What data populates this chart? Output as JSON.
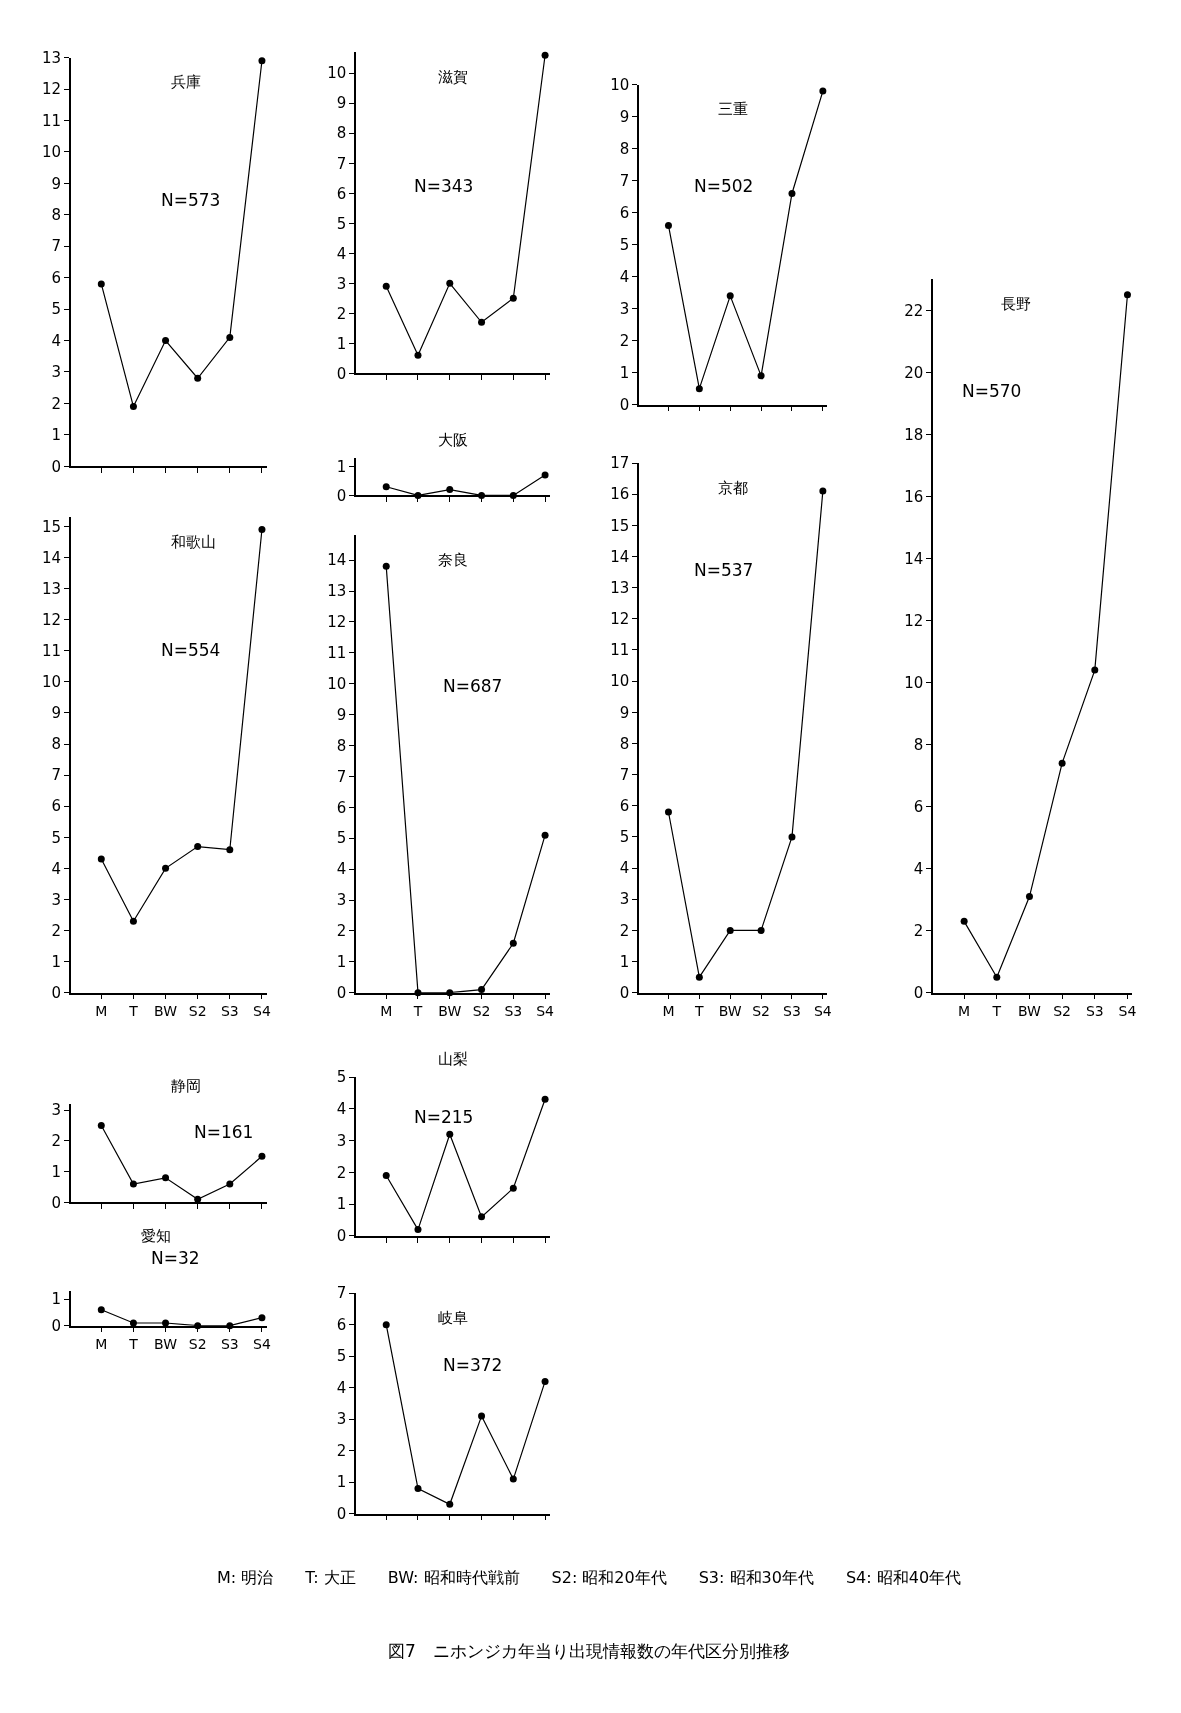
{
  "chart_data": [
    {
      "type": "line",
      "title": "兵庫",
      "categories": [
        null,
        null,
        null,
        null,
        null,
        null
      ],
      "series": [
        {
          "color": "#000000",
          "values": [
            5.8,
            1.9,
            4.0,
            2.8,
            4.1,
            12.9
          ]
        }
      ],
      "ylim": [
        0,
        13
      ],
      "yticks": [
        0,
        1,
        2,
        3,
        4,
        5,
        6,
        7,
        8,
        9,
        10,
        11,
        12,
        13
      ],
      "annotations": [
        "N=573"
      ],
      "marker": "circle",
      "line_style": "solid"
    },
    {
      "type": "line",
      "title": "滋賀",
      "categories": [
        null,
        null,
        null,
        null,
        null,
        null
      ],
      "series": [
        {
          "color": "#000000",
          "values": [
            2.9,
            0.6,
            3.0,
            1.7,
            2.5,
            10.6
          ]
        }
      ],
      "ylim": [
        0,
        10.7
      ],
      "yticks": [
        0,
        1,
        2,
        3,
        4,
        5,
        6,
        7,
        8,
        9,
        10
      ],
      "annotations": [
        "N=343"
      ],
      "marker": "circle",
      "line_style": "solid"
    },
    {
      "type": "line",
      "title": "三重",
      "categories": [
        null,
        null,
        null,
        null,
        null,
        null
      ],
      "series": [
        {
          "color": "#000000",
          "values": [
            5.6,
            0.5,
            3.4,
            0.9,
            6.6,
            9.8
          ]
        }
      ],
      "ylim": [
        0,
        10
      ],
      "yticks": [
        0,
        1,
        2,
        3,
        4,
        5,
        6,
        7,
        8,
        9,
        10
      ],
      "annotations": [
        "N=502"
      ],
      "marker": "circle",
      "line_style": "solid"
    },
    {
      "type": "line",
      "title": "長野",
      "categories": [
        "M",
        "T",
        "BW",
        "S2",
        "S3",
        "S4"
      ],
      "series": [
        {
          "color": "#000000",
          "values": [
            2.3,
            0.5,
            3.1,
            7.4,
            10.4,
            22.5
          ]
        }
      ],
      "ylim": [
        0,
        23
      ],
      "yticks": [
        0,
        2,
        4,
        6,
        8,
        10,
        12,
        14,
        16,
        18,
        20,
        22
      ],
      "annotations": [
        "N=570"
      ],
      "marker": "circle",
      "line_style": "solid"
    },
    {
      "type": "line",
      "title": "大阪",
      "categories": [
        null,
        null,
        null,
        null,
        null,
        null
      ],
      "series": [
        {
          "color": "#000000",
          "values": [
            0.3,
            0.0,
            0.2,
            0.0,
            0.0,
            0.7
          ]
        }
      ],
      "ylim": [
        0,
        1.3
      ],
      "yticks": [
        0,
        1
      ],
      "marker": "circle",
      "line_style": "solid"
    },
    {
      "type": "line",
      "title": "和歌山",
      "categories": [
        "M",
        "T",
        "BW",
        "S2",
        "S3",
        "S4"
      ],
      "series": [
        {
          "color": "#000000",
          "values": [
            4.3,
            2.3,
            4.0,
            4.7,
            4.6,
            14.9
          ]
        }
      ],
      "ylim": [
        0,
        15.3
      ],
      "yticks": [
        0,
        1,
        2,
        3,
        4,
        5,
        6,
        7,
        8,
        9,
        10,
        11,
        12,
        13,
        14,
        15
      ],
      "annotations": [
        "N=554"
      ],
      "marker": "circle",
      "line_style": "solid"
    },
    {
      "type": "line",
      "title": "奈良",
      "categories": [
        "M",
        "T",
        "BW",
        "S2",
        "S3",
        "S4"
      ],
      "series": [
        {
          "color": "#000000",
          "values": [
            13.8,
            0.0,
            0.0,
            0.1,
            1.6,
            5.1
          ]
        }
      ],
      "ylim": [
        0,
        14.8
      ],
      "yticks": [
        0,
        1,
        2,
        3,
        4,
        5,
        6,
        7,
        8,
        9,
        10,
        11,
        12,
        13,
        14
      ],
      "annotations": [
        "N=687"
      ],
      "marker": "circle",
      "line_style": "solid"
    },
    {
      "type": "line",
      "title": "京都",
      "categories": [
        "M",
        "T",
        "BW",
        "S2",
        "S3",
        "S4"
      ],
      "series": [
        {
          "color": "#000000",
          "values": [
            5.8,
            0.5,
            2.0,
            2.0,
            5.0,
            16.1
          ]
        }
      ],
      "ylim": [
        0,
        17
      ],
      "yticks": [
        0,
        1,
        2,
        3,
        4,
        5,
        6,
        7,
        8,
        9,
        10,
        11,
        12,
        13,
        14,
        15,
        16,
        17
      ],
      "annotations": [
        "N=537"
      ],
      "marker": "circle",
      "line_style": "solid"
    },
    {
      "type": "line",
      "title": "静岡",
      "categories": [
        null,
        null,
        null,
        null,
        null,
        null
      ],
      "series": [
        {
          "color": "#000000",
          "values": [
            2.5,
            0.6,
            0.8,
            0.1,
            0.6,
            1.5
          ]
        }
      ],
      "ylim": [
        0,
        3.2
      ],
      "yticks": [
        0,
        1,
        2,
        3
      ],
      "annotations": [
        "N=161"
      ],
      "marker": "circle",
      "line_style": "solid"
    },
    {
      "type": "line",
      "title": "山梨",
      "categories": [
        null,
        null,
        null,
        null,
        null,
        null
      ],
      "series": [
        {
          "color": "#000000",
          "values": [
            1.9,
            0.2,
            3.2,
            0.6,
            1.5,
            4.3
          ]
        }
      ],
      "ylim": [
        0,
        5
      ],
      "yticks": [
        0,
        1,
        2,
        3,
        4,
        5
      ],
      "annotations": [
        "N=215"
      ],
      "marker": "circle",
      "line_style": "solid"
    },
    {
      "type": "line",
      "title": "愛知",
      "categories": [
        "M",
        "T",
        "BW",
        "S2",
        "S3",
        "S4"
      ],
      "series": [
        {
          "color": "#000000",
          "values": [
            0.6,
            0.1,
            0.1,
            0.0,
            0.0,
            0.3
          ]
        }
      ],
      "ylim": [
        0,
        1.3
      ],
      "yticks": [
        0,
        1
      ],
      "annotations": [
        "N=32"
      ],
      "marker": "circle",
      "line_style": "solid"
    },
    {
      "type": "line",
      "title": "岐阜",
      "categories": [
        null,
        null,
        null,
        null,
        null,
        null
      ],
      "series": [
        {
          "color": "#000000",
          "values": [
            6.0,
            0.8,
            0.3,
            3.1,
            1.1,
            4.2
          ]
        }
      ],
      "ylim": [
        0,
        7
      ],
      "yticks": [
        0,
        1,
        2,
        3,
        4,
        5,
        6,
        7
      ],
      "annotations": [
        "N=372"
      ],
      "marker": "circle",
      "line_style": "solid"
    },
    {
      "type": "other",
      "title": "図7　ニホンジカ年当り出現情報数の年代区分別推移",
      "annotations": [
        "M: 明治　　T: 大正　　BW: 昭和時代戦前　　S2: 昭和20年代　　S3: 昭和30年代　　S4: 昭和40年代"
      ]
    }
  ]
}
